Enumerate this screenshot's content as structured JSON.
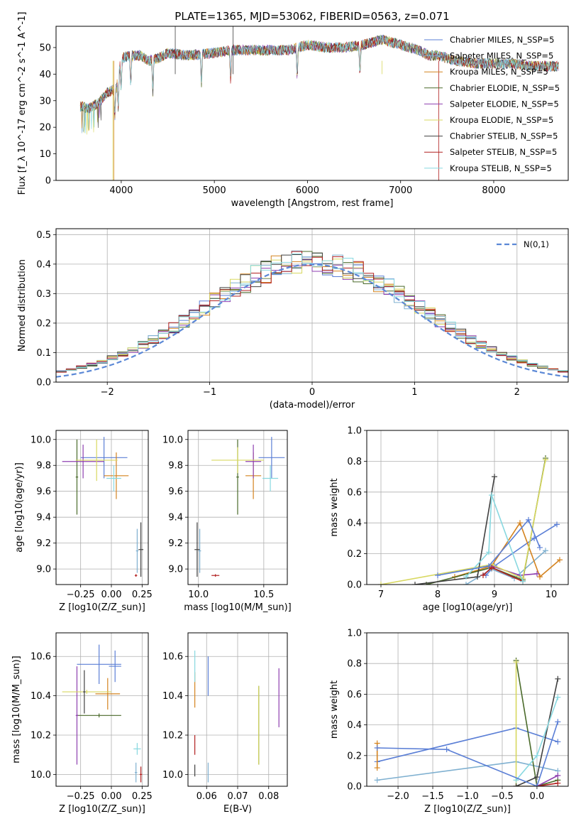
{
  "title": "PLATE=1365, MJD=53062, FIBERID=0563, z=0.071",
  "models": [
    {
      "name": "Chabrier MILES",
      "color": "#5b7fd6"
    },
    {
      "name": "Salpeter MILES",
      "color": "#7fb0d0"
    },
    {
      "name": "Kroupa MILES",
      "color": "#d4831f"
    },
    {
      "name": "Chabrier ELODIE",
      "color": "#4a6a2a"
    },
    {
      "name": "Salpeter ELODIE",
      "color": "#8e3fb0"
    },
    {
      "name": "Kroupa ELODIE",
      "color": "#d8d860"
    },
    {
      "name": "Chabrier STELIB",
      "color": "#404040"
    },
    {
      "name": "Salpeter STELIB",
      "color": "#b22020"
    },
    {
      "name": "Kroupa STELIB",
      "color": "#88d8e0"
    }
  ],
  "nssp_suffix": "N_SSP=5",
  "chart_data": [
    {
      "id": "spectrum",
      "type": "line",
      "xlabel": "wavelength [Angstrom, rest frame]",
      "ylabel": "Flux [f_λ 10^-17 erg cm^-2 s^-1 A^-1]",
      "xlim": [
        3300,
        8800
      ],
      "ylim": [
        0,
        58
      ],
      "xticks": [
        4000,
        5000,
        6000,
        7000,
        8000
      ],
      "yticks": [
        0,
        10,
        20,
        30,
        40,
        50
      ],
      "legend_loc": "upper right",
      "grid": false,
      "continuum": {
        "x": [
          3550,
          3650,
          3750,
          3850,
          3950,
          4000,
          4100,
          4200,
          4300,
          4400,
          4500,
          4700,
          5000,
          5200,
          5500,
          5800,
          6000,
          6200,
          6400,
          6600,
          6800,
          7000,
          7200,
          7300,
          7400,
          7600,
          7800,
          8000,
          8200,
          8400,
          8600,
          8700
        ],
        "y": [
          28,
          27,
          29,
          33,
          35,
          46,
          47,
          47,
          45,
          46,
          48,
          47,
          48,
          49,
          49,
          49,
          51,
          50,
          50,
          51,
          53,
          51,
          49,
          47,
          47,
          45,
          44,
          44,
          44,
          43,
          43,
          43
        ]
      }
    },
    {
      "id": "residuals",
      "type": "line",
      "xlabel": "(data-model)/error",
      "ylabel": "Normed distribution",
      "xlim": [
        -2.5,
        2.5
      ],
      "ylim": [
        0,
        0.52
      ],
      "xticks": [
        -2,
        -1,
        0,
        1,
        2
      ],
      "yticks": [
        0.0,
        0.1,
        0.2,
        0.3,
        0.4,
        0.5
      ],
      "legend": "N(0,1)",
      "legend_loc": "upper right",
      "grid": true
    },
    {
      "id": "age_vs_Z",
      "type": "scatter",
      "xlabel": "Z [log10(Z/Z_sun)]",
      "ylabel": "age [log10(age/yr)]",
      "xlim": [
        -0.45,
        0.3
      ],
      "ylim": [
        8.88,
        10.07
      ],
      "xticks": [
        -0.25,
        0.0,
        0.25
      ],
      "yticks": [
        9.0,
        9.2,
        9.4,
        9.6,
        9.8,
        10.0
      ],
      "grid": true,
      "points": [
        {
          "x": -0.06,
          "xerr": 0.19,
          "y": 9.86,
          "yerr": 0.16
        },
        {
          "x": 0.21,
          "xerr": 0.01,
          "y": 9.14,
          "yerr": 0.17
        },
        {
          "x": 0.04,
          "xerr": 0.1,
          "y": 9.72,
          "yerr": 0.18
        },
        {
          "x": -0.28,
          "xerr": 0.01,
          "y": 9.71,
          "yerr": 0.29
        },
        {
          "x": -0.23,
          "xerr": 0.17,
          "y": 9.83,
          "yerr": 0.13
        },
        {
          "x": -0.12,
          "xerr": 0.17,
          "y": 9.84,
          "yerr": 0.16
        },
        {
          "x": 0.24,
          "xerr": 0.02,
          "y": 9.15,
          "yerr": 0.21
        },
        {
          "x": 0.2,
          "xerr": 0.01,
          "y": 8.95,
          "yerr": 0.01
        },
        {
          "x": 0.02,
          "xerr": 0.06,
          "y": 9.7,
          "yerr": 0.1
        }
      ]
    },
    {
      "id": "age_vs_mass",
      "type": "scatter",
      "xlabel": "mass [log10(M/M_sun)]",
      "ylabel": "",
      "xlim": [
        9.92,
        10.68
      ],
      "ylim": [
        8.88,
        10.07
      ],
      "xticks": [
        10.0,
        10.5
      ],
      "yticks": [
        9.0,
        9.2,
        9.4,
        9.6,
        9.8,
        10.0
      ],
      "grid": true,
      "points": [
        {
          "x": 10.56,
          "xerr": 0.1,
          "y": 9.86,
          "yerr": 0.16
        },
        {
          "x": 10.01,
          "xerr": 0.01,
          "y": 9.14,
          "yerr": 0.17
        },
        {
          "x": 10.42,
          "xerr": 0.06,
          "y": 9.72,
          "yerr": 0.18
        },
        {
          "x": 10.3,
          "xerr": 0.01,
          "y": 9.71,
          "yerr": 0.29
        },
        {
          "x": 10.42,
          "xerr": 0.06,
          "y": 9.83,
          "yerr": 0.13
        },
        {
          "x": 10.3,
          "xerr": 0.2,
          "y": 9.84,
          "yerr": 0.1
        },
        {
          "x": 9.99,
          "xerr": 0.02,
          "y": 9.15,
          "yerr": 0.21
        },
        {
          "x": 10.13,
          "xerr": 0.03,
          "y": 8.95,
          "yerr": 0.01
        },
        {
          "x": 10.55,
          "xerr": 0.06,
          "y": 9.7,
          "yerr": 0.1
        }
      ]
    },
    {
      "id": "mass_weight_vs_age",
      "type": "line",
      "xlabel": "age [log10(age/yr)]",
      "ylabel": "mass weight",
      "xlim": [
        6.75,
        10.3
      ],
      "ylim": [
        0,
        1.0
      ],
      "xticks": [
        7,
        8,
        9,
        10
      ],
      "yticks": [
        0.0,
        0.2,
        0.4,
        0.6,
        0.8,
        1.0
      ],
      "grid": true,
      "series": [
        {
          "x": [
            8.85,
            9.0,
            9.7,
            10.1
          ],
          "y": [
            0.06,
            0.12,
            0.3,
            0.39
          ]
        },
        {
          "x": [
            8.5,
            8.95,
            9.35,
            9.9
          ],
          "y": [
            0.0,
            0.1,
            0.04,
            0.22
          ]
        },
        {
          "x": [
            8.3,
            8.95,
            9.45,
            9.8,
            10.15
          ],
          "y": [
            0.05,
            0.12,
            0.4,
            0.05,
            0.16
          ]
        },
        {
          "x": [
            7.8,
            8.95,
            9.5,
            9.9
          ],
          "y": [
            0.0,
            0.11,
            0.03,
            0.82
          ]
        },
        {
          "x": [
            8.95,
            9.45,
            9.75
          ],
          "y": [
            0.12,
            0.06,
            0.07
          ]
        },
        {
          "x": [
            7.0,
            8.95,
            9.5,
            9.9
          ],
          "y": [
            0.0,
            0.13,
            0.04,
            0.81
          ]
        },
        {
          "x": [
            7.6,
            8.7,
            9.0
          ],
          "y": [
            0.0,
            0.05,
            0.7
          ]
        },
        {
          "x": [
            8.8,
            8.95,
            9.5
          ],
          "y": [
            0.06,
            0.11,
            0.02
          ]
        },
        {
          "x": [
            8.5,
            8.9,
            8.95,
            9.5
          ],
          "y": [
            0.05,
            0.21,
            0.58,
            0.02
          ]
        },
        {
          "x": [
            8.0,
            8.9,
            9.6,
            9.8
          ],
          "y": [
            0.06,
            0.12,
            0.42,
            0.24
          ]
        }
      ]
    },
    {
      "id": "mass_vs_Z",
      "type": "scatter",
      "xlabel": "Z [log10(Z/Z_sun)]",
      "ylabel": "mass [log10(M/M_sun)]",
      "xlim": [
        -0.45,
        0.3
      ],
      "ylim": [
        9.94,
        10.72
      ],
      "xticks": [
        -0.25,
        0.0,
        0.25
      ],
      "yticks": [
        10.0,
        10.2,
        10.4,
        10.6
      ],
      "grid": true,
      "points": [
        {
          "x": -0.1,
          "xerr": 0.18,
          "y": 10.56,
          "yerr": 0.1
        },
        {
          "x": 0.2,
          "xerr": 0.01,
          "y": 10.01,
          "yerr": 0.05
        },
        {
          "x": -0.03,
          "xerr": 0.1,
          "y": 10.41,
          "yerr": 0.08
        },
        {
          "x": -0.1,
          "xerr": 0.18,
          "y": 10.3,
          "yerr": 0.01
        },
        {
          "x": -0.28,
          "xerr": 0.01,
          "y": 10.3,
          "yerr": 0.25
        },
        {
          "x": -0.2,
          "xerr": 0.2,
          "y": 10.42,
          "yerr": 0.01
        },
        {
          "x": -0.22,
          "xerr": 0.01,
          "y": 10.42,
          "yerr": 0.11
        },
        {
          "x": 0.24,
          "xerr": 0.01,
          "y": 10.0,
          "yerr": 0.04
        },
        {
          "x": 0.21,
          "xerr": 0.03,
          "y": 10.13,
          "yerr": 0.03
        },
        {
          "x": 0.03,
          "xerr": 0.05,
          "y": 10.55,
          "yerr": 0.08
        }
      ]
    },
    {
      "id": "mass_vs_EBV",
      "type": "scatter",
      "xlabel": "E(B-V)",
      "ylabel": "",
      "xlim": [
        0.054,
        0.086
      ],
      "ylim": [
        9.94,
        10.72
      ],
      "xticks": [
        0.06,
        0.07,
        0.08
      ],
      "yticks": [
        10.0,
        10.2,
        10.4,
        10.6
      ],
      "grid": true,
      "points": [
        {
          "x": 0.0605,
          "xerr": 0.0,
          "y": 10.5,
          "yerr": 0.1
        },
        {
          "x": 0.0605,
          "xerr": 0.0,
          "y": 10.01,
          "yerr": 0.05
        },
        {
          "x": 0.0562,
          "xerr": 0.0,
          "y": 10.43,
          "yerr": 0.09
        },
        {
          "x": 0.0768,
          "xerr": 0.0,
          "y": 10.25,
          "yerr": 0.2
        },
        {
          "x": 0.0833,
          "xerr": 0.0,
          "y": 10.39,
          "yerr": 0.15
        },
        {
          "x": 0.0768,
          "xerr": 0.0,
          "y": 10.25,
          "yerr": 0.2
        },
        {
          "x": 0.0562,
          "xerr": 0.0,
          "y": 10.02,
          "yerr": 0.03
        },
        {
          "x": 0.0562,
          "xerr": 0.0,
          "y": 10.15,
          "yerr": 0.05
        },
        {
          "x": 0.0562,
          "xerr": 0.0,
          "y": 10.55,
          "yerr": 0.08
        }
      ]
    },
    {
      "id": "mass_weight_vs_Z",
      "type": "line",
      "xlabel": "Z [log10(Z/Z_sun)]",
      "ylabel": "mass weight",
      "xlim": [
        -2.45,
        0.45
      ],
      "ylim": [
        0,
        1.0
      ],
      "xticks": [
        -2.0,
        -1.5,
        -1.0,
        -0.5,
        0.0
      ],
      "yticks": [
        0.0,
        0.2,
        0.4,
        0.6,
        0.8,
        1.0
      ],
      "grid": true,
      "series": [
        {
          "x": [
            -2.3,
            -0.3,
            0.3
          ],
          "y": [
            0.16,
            0.38,
            0.29
          ]
        },
        {
          "x": [
            -2.3,
            -0.3,
            0.3
          ],
          "y": [
            0.04,
            0.16,
            0.1
          ]
        },
        {
          "x": [
            -2.3,
            -2.3
          ],
          "y": [
            0.28,
            0.12
          ]
        },
        {
          "x": [
            -0.3,
            0.0,
            0.3
          ],
          "y": [
            0.82,
            0.0,
            0.04
          ]
        },
        {
          "x": [
            -0.3,
            0.0,
            0.3
          ],
          "y": [
            0.0,
            0.0,
            0.07
          ]
        },
        {
          "x": [
            -0.3,
            -0.3,
            0.0
          ],
          "y": [
            0.81,
            0.0,
            0.0
          ]
        },
        {
          "x": [
            -0.3,
            0.0,
            0.3
          ],
          "y": [
            0.0,
            0.06,
            0.7
          ]
        },
        {
          "x": [
            0.0,
            0.3
          ],
          "y": [
            0.0,
            0.02
          ]
        },
        {
          "x": [
            -0.3,
            0.0,
            0.3
          ],
          "y": [
            0.04,
            0.2,
            0.58
          ]
        },
        {
          "x": [
            -2.3,
            -1.3,
            0.0,
            0.3
          ],
          "y": [
            0.25,
            0.24,
            0.0,
            0.42
          ]
        }
      ]
    }
  ]
}
